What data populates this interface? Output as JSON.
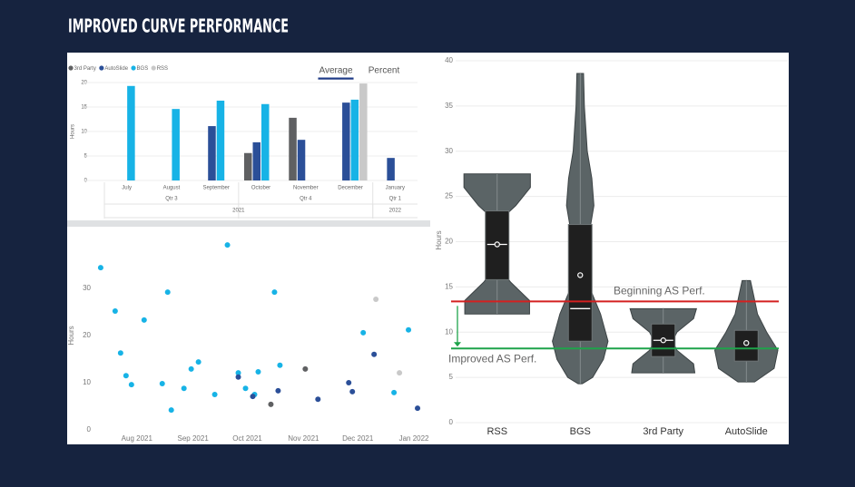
{
  "title": "IMPROVED CURVE PERFORMANCE",
  "chart_data": [
    {
      "type": "bar",
      "legend": "top-left",
      "tabs": [
        "Average",
        "Percent"
      ],
      "active_tab": 0,
      "y_label": "Hours",
      "categories": [
        "July",
        "August",
        "September",
        "October",
        "November",
        "December",
        "January"
      ],
      "quarters": [
        "Qtr 3",
        "Qtr 3",
        "Qtr 3",
        "Qtr 4",
        "Qtr 4",
        "Qtr 4",
        "Qtr 1"
      ],
      "years": [
        "2021",
        "2021",
        "2021",
        "2021",
        "2021",
        "2021",
        "2022"
      ],
      "ylim": [
        0,
        20
      ],
      "yticks": [
        0,
        5,
        10,
        15,
        20
      ],
      "grid": true,
      "series": [
        {
          "name": "3rd Party",
          "color": "#5f6062",
          "values": [
            null,
            null,
            null,
            5.6,
            12.8,
            null,
            null
          ]
        },
        {
          "name": "AutoSlide",
          "color": "#2b4f98",
          "values": [
            null,
            null,
            11.1,
            7.8,
            8.3,
            15.9,
            4.6
          ]
        },
        {
          "name": "BGS",
          "color": "#17b3e6",
          "values": [
            19.3,
            14.6,
            16.3,
            15.6,
            null,
            16.5,
            null
          ]
        },
        {
          "name": "RSS",
          "color": "#c9c9c9",
          "values": [
            null,
            null,
            null,
            null,
            null,
            19.8,
            null
          ]
        }
      ]
    },
    {
      "type": "scatter",
      "y_label": "Hours",
      "xlim": [
        "2021-06-26",
        "2022-01-09"
      ],
      "xticks": [
        {
          "value": "2021-08",
          "label": "Aug 2021"
        },
        {
          "value": "2021-09",
          "label": "Sep 2021"
        },
        {
          "value": "2021-10",
          "label": "Oct 2021"
        },
        {
          "value": "2021-11",
          "label": "Nov 2021"
        },
        {
          "value": "2021-12",
          "label": "Dec 2021"
        },
        {
          "value": "2022-01",
          "label": "Jan 2022"
        }
      ],
      "ylim": [
        0,
        40
      ],
      "yticks": [
        0,
        10,
        20,
        30
      ],
      "series": [
        {
          "color": "#17b3e6",
          "x": [
            "2021-07-12",
            "2021-07-20",
            "2021-07-23",
            "2021-07-26",
            "2021-07-29",
            "2021-08-05",
            "2021-08-15",
            "2021-08-18",
            "2021-08-20",
            "2021-08-27",
            "2021-08-31",
            "2021-09-04",
            "2021-09-13",
            "2021-09-20",
            "2021-09-26",
            "2021-09-30",
            "2021-10-05",
            "2021-10-07",
            "2021-10-16",
            "2021-10-19",
            "2021-12-04",
            "2021-12-21",
            "2021-12-29"
          ],
          "values": [
            34.4,
            25.2,
            16.3,
            11.5,
            9.6,
            23.3,
            9.8,
            29.2,
            4.2,
            8.8,
            12.9,
            14.4,
            7.5,
            39.2,
            12.1,
            8.8,
            7.5,
            12.3,
            29.2,
            13.7,
            20.6,
            7.9,
            21.2
          ]
        },
        {
          "color": "#2b4f98",
          "x": [
            "2021-09-26",
            "2021-10-04",
            "2021-10-18",
            "2021-11-09",
            "2021-11-26",
            "2021-11-28",
            "2021-12-10",
            "2022-01-03"
          ],
          "values": [
            11.2,
            7.1,
            8.3,
            6.5,
            10.0,
            8.1,
            16.0,
            4.6
          ]
        },
        {
          "color": "#5f6062",
          "x": [
            "2021-10-14",
            "2021-11-02"
          ],
          "values": [
            5.4,
            12.9
          ]
        },
        {
          "color": "#c9c9c9",
          "x": [
            "2021-12-11",
            "2021-12-24"
          ],
          "values": [
            27.7,
            12.1
          ]
        }
      ]
    },
    {
      "type": "violin",
      "y_label": "Hours",
      "categories": [
        "RSS",
        "BGS",
        "3rd Party",
        "AutoSlide"
      ],
      "color": "#5b6466",
      "box_color": "#1f1f1f",
      "ylim": [
        0,
        40
      ],
      "yticks": [
        0,
        5,
        10,
        15,
        20,
        25,
        30,
        35,
        40
      ],
      "grid": true,
      "stats": [
        {
          "min": 12.0,
          "q1": 15.8,
          "median": 19.7,
          "mean": 19.7,
          "q3": 23.4,
          "max": 27.5,
          "density": {
            "y": [
              27.5,
              26,
              24,
              22.5,
              20,
              17,
              15.5,
              13.5,
              12
            ],
            "width": [
              0.8,
              0.8,
              0.45,
              0.1,
              0.05,
              0.07,
              0.33,
              0.78,
              0.78
            ]
          }
        },
        {
          "min": 4.3,
          "q1": 9.0,
          "median": 12.6,
          "mean": 16.3,
          "q3": 21.9,
          "max": 38.6,
          "density": {
            "y": [
              38.6,
              35,
              30,
              27,
              24,
              21,
              18,
              15,
              12,
              9,
              7,
              5,
              4.3
            ],
            "width": [
              0.08,
              0.1,
              0.17,
              0.28,
              0.33,
              0.22,
              0.11,
              0.22,
              0.49,
              0.67,
              0.56,
              0.3,
              0.05
            ]
          }
        },
        {
          "min": 5.5,
          "q1": 7.3,
          "median": 9.1,
          "mean": 9.1,
          "q3": 10.9,
          "max": 12.6,
          "density": {
            "y": [
              12.6,
              11.5,
              10,
              9,
              8,
              6.5,
              5.5
            ],
            "width": [
              0.8,
              0.73,
              0.33,
              0.22,
              0.33,
              0.73,
              0.76
            ]
          }
        },
        {
          "min": 4.5,
          "q1": 6.8,
          "median": 8.2,
          "mean": 8.8,
          "q3": 10.2,
          "max": 15.7,
          "density": {
            "y": [
              15.7,
              14,
              12,
              10,
              8,
              6,
              4.5
            ],
            "width": [
              0.1,
              0.18,
              0.27,
              0.49,
              0.76,
              0.67,
              0.2
            ]
          }
        }
      ],
      "annotations": [
        {
          "text": "Beginning AS Perf.",
          "y": 13.4,
          "color": "#d42020"
        },
        {
          "text": "Improved AS Perf.",
          "y": 8.2,
          "color": "#1ea34a"
        }
      ]
    }
  ]
}
